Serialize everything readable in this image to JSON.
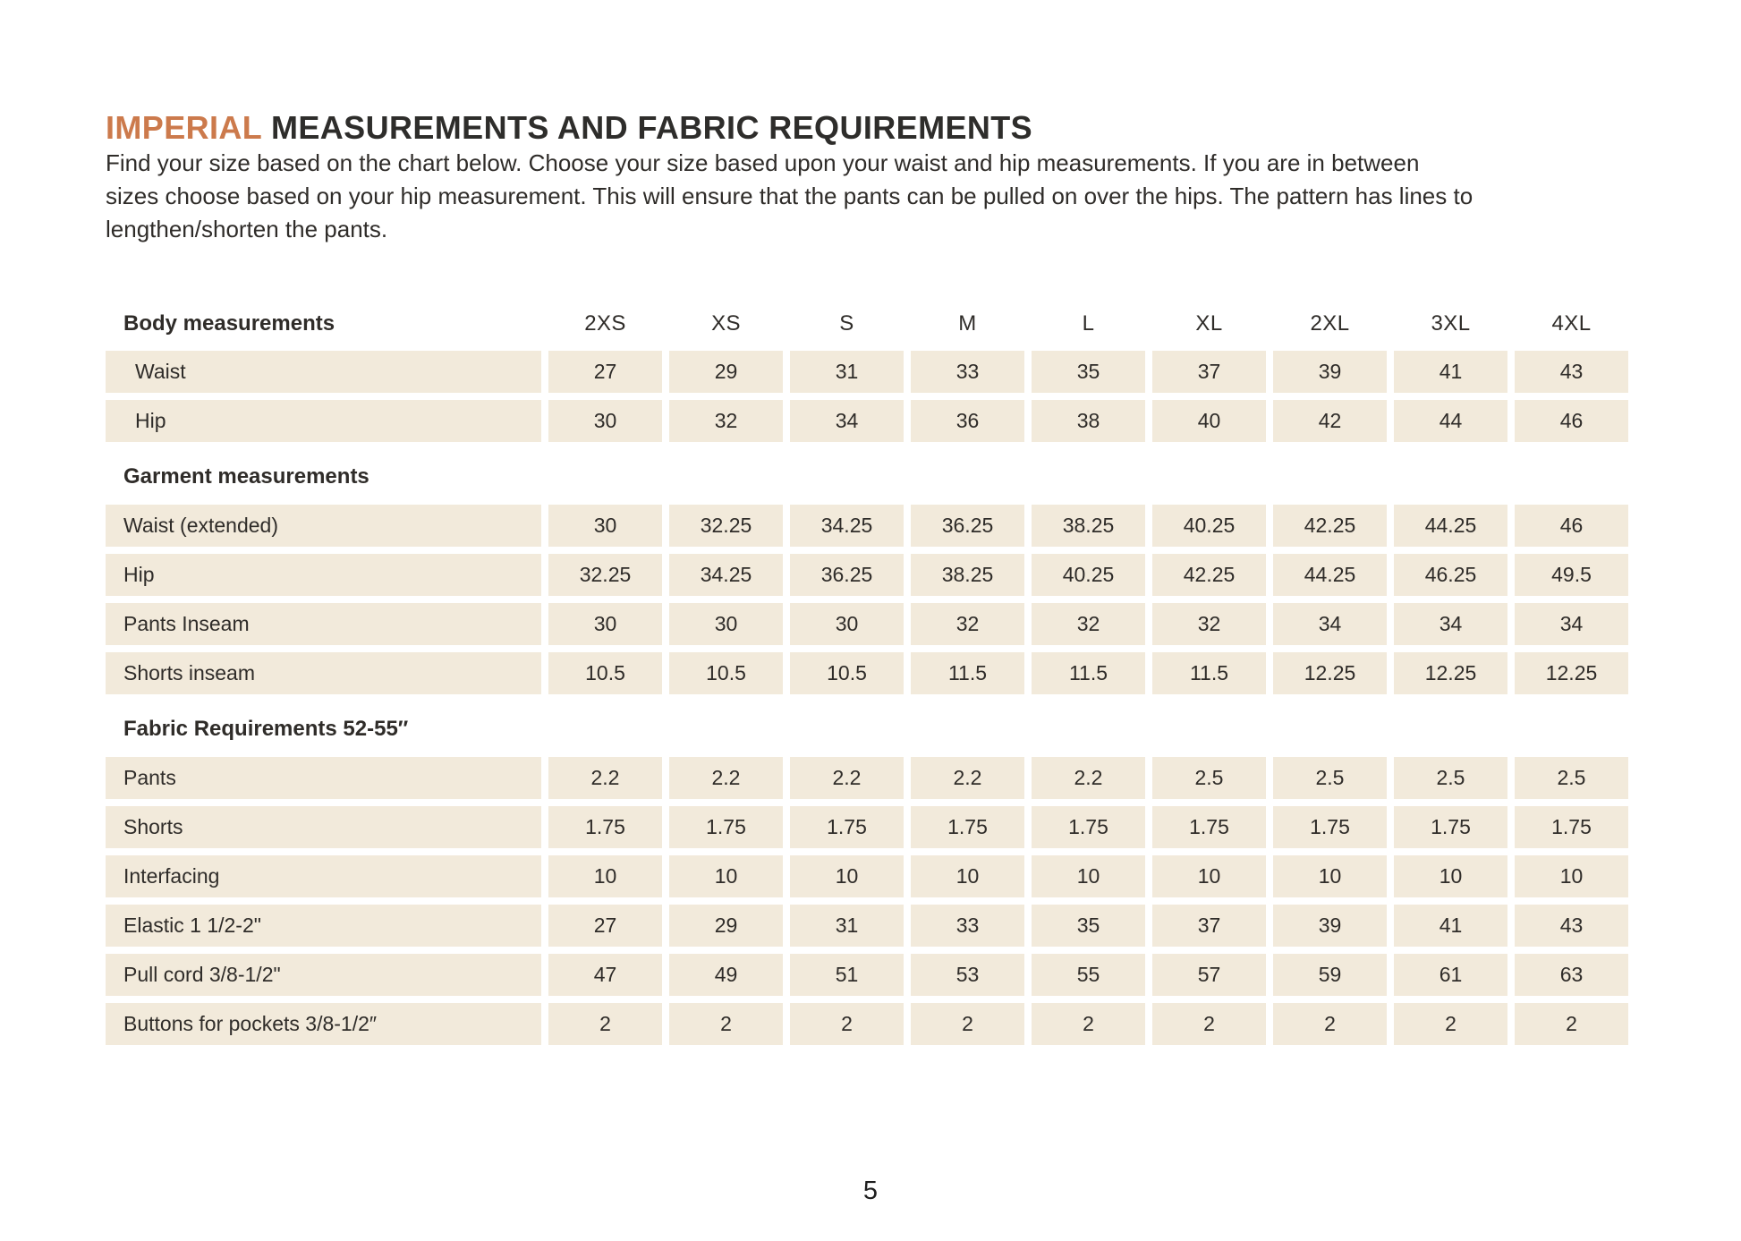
{
  "page": {
    "title": {
      "highlight": "IMPERIAL",
      "rest": "MEASUREMENTS AND FABRIC REQUIREMENTS"
    },
    "intro_lines": [
      "Find your size based on the chart below. Choose your size based upon your waist and hip measurements. If you are in between",
      "sizes choose based on your hip measurement. This will ensure that the pants can be pulled on over the hips. The pattern has lines to",
      "lengthen/shorten the pants."
    ],
    "page_number": "5"
  },
  "colors": {
    "accent_orange": "#cc7a4c",
    "cell_beige": "#f2eadb",
    "text_dark": "#2f2c29"
  },
  "chart_data": {
    "type": "table",
    "title": "Imperial measurements and fabric requirements",
    "size_columns": [
      "2XS",
      "XS",
      "S",
      "M",
      "L",
      "XL",
      "2XL",
      "3XL",
      "4XL"
    ],
    "sections": [
      {
        "header": "Body measurements",
        "header_in_size_row": true,
        "rows": [
          {
            "label": "Waist",
            "indent": true,
            "values": [
              "27",
              "29",
              "31",
              "33",
              "35",
              "37",
              "39",
              "41",
              "43"
            ]
          },
          {
            "label": "Hip",
            "indent": true,
            "values": [
              "30",
              "32",
              "34",
              "36",
              "38",
              "40",
              "42",
              "44",
              "46"
            ]
          }
        ]
      },
      {
        "header": "Garment measurements",
        "rows": [
          {
            "label": "Waist (extended)",
            "values": [
              "30",
              "32.25",
              "34.25",
              "36.25",
              "38.25",
              "40.25",
              "42.25",
              "44.25",
              "46"
            ]
          },
          {
            "label": "Hip",
            "values": [
              "32.25",
              "34.25",
              "36.25",
              "38.25",
              "40.25",
              "42.25",
              "44.25",
              "46.25",
              "49.5"
            ]
          },
          {
            "label": "Pants Inseam",
            "values": [
              "30",
              "30",
              "30",
              "32",
              "32",
              "32",
              "34",
              "34",
              "34"
            ]
          },
          {
            "label": "Shorts inseam",
            "values": [
              "10.5",
              "10.5",
              "10.5",
              "11.5",
              "11.5",
              "11.5",
              "12.25",
              "12.25",
              "12.25"
            ]
          }
        ]
      },
      {
        "header": "Fabric Requirements 52-55″",
        "rows": [
          {
            "label": "Pants",
            "values": [
              "2.2",
              "2.2",
              "2.2",
              "2.2",
              "2.2",
              "2.5",
              "2.5",
              "2.5",
              "2.5"
            ]
          },
          {
            "label": "Shorts",
            "values": [
              "1.75",
              "1.75",
              "1.75",
              "1.75",
              "1.75",
              "1.75",
              "1.75",
              "1.75",
              "1.75"
            ]
          },
          {
            "label": "Interfacing",
            "values": [
              "10",
              "10",
              "10",
              "10",
              "10",
              "10",
              "10",
              "10",
              "10"
            ]
          },
          {
            "label": "Elastic 1 1/2-2\"",
            "values": [
              "27",
              "29",
              "31",
              "33",
              "35",
              "37",
              "39",
              "41",
              "43"
            ]
          },
          {
            "label": "Pull cord 3/8-1/2\"",
            "values": [
              "47",
              "49",
              "51",
              "53",
              "55",
              "57",
              "59",
              "61",
              "63"
            ]
          },
          {
            "label": "Buttons for pockets 3/8-1/2″",
            "values": [
              "2",
              "2",
              "2",
              "2",
              "2",
              "2",
              "2",
              "2",
              "2"
            ]
          }
        ]
      }
    ]
  }
}
